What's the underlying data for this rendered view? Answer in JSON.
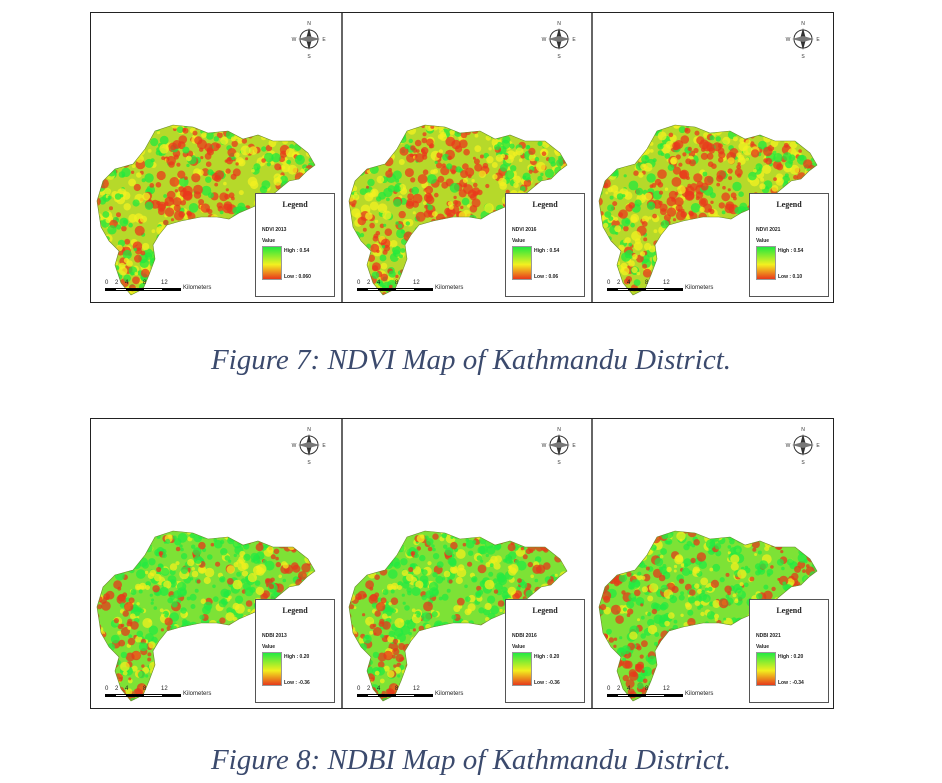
{
  "figures": [
    {
      "index": "ndvi",
      "caption": "Figure 7: NDVI Map of Kathmandu District.",
      "legend_title": "Legend",
      "value_label": "Value",
      "panels": [
        {
          "layer": "NDVI 2013",
          "high": "High : 0.54",
          "low": "Low : 0.060"
        },
        {
          "layer": "NDVI 2016",
          "high": "High : 0.54",
          "low": "Low : 0.06"
        },
        {
          "layer": "NDVI 2021",
          "high": "High : 0.54",
          "low": "Low : 0.10"
        }
      ],
      "colors": {
        "high": "#21e83d",
        "mid": "#f3f020",
        "low": "#e9381c"
      }
    },
    {
      "index": "ndbi",
      "caption": "Figure 8: NDBI Map of Kathmandu District.",
      "legend_title": "Legend",
      "value_label": "Value",
      "panels": [
        {
          "layer": "NDBI 2013",
          "high": "High : 0.20",
          "low": "Low : -0.36"
        },
        {
          "layer": "NDBI 2016",
          "high": "High : 0.20",
          "low": "Low : -0.36"
        },
        {
          "layer": "NDBI 2021",
          "high": "High : 0.20",
          "low": "Low : -0.34"
        }
      ],
      "colors": {
        "high": "#24ea42",
        "mid": "#f2ef1e",
        "low": "#e63a1b"
      }
    }
  ],
  "scale": {
    "ticks": [
      "0",
      "2",
      "4",
      "8",
      "12"
    ],
    "unit": "Kilometers"
  },
  "compass": {
    "n": "N",
    "s": "S",
    "e": "E",
    "w": "W"
  }
}
